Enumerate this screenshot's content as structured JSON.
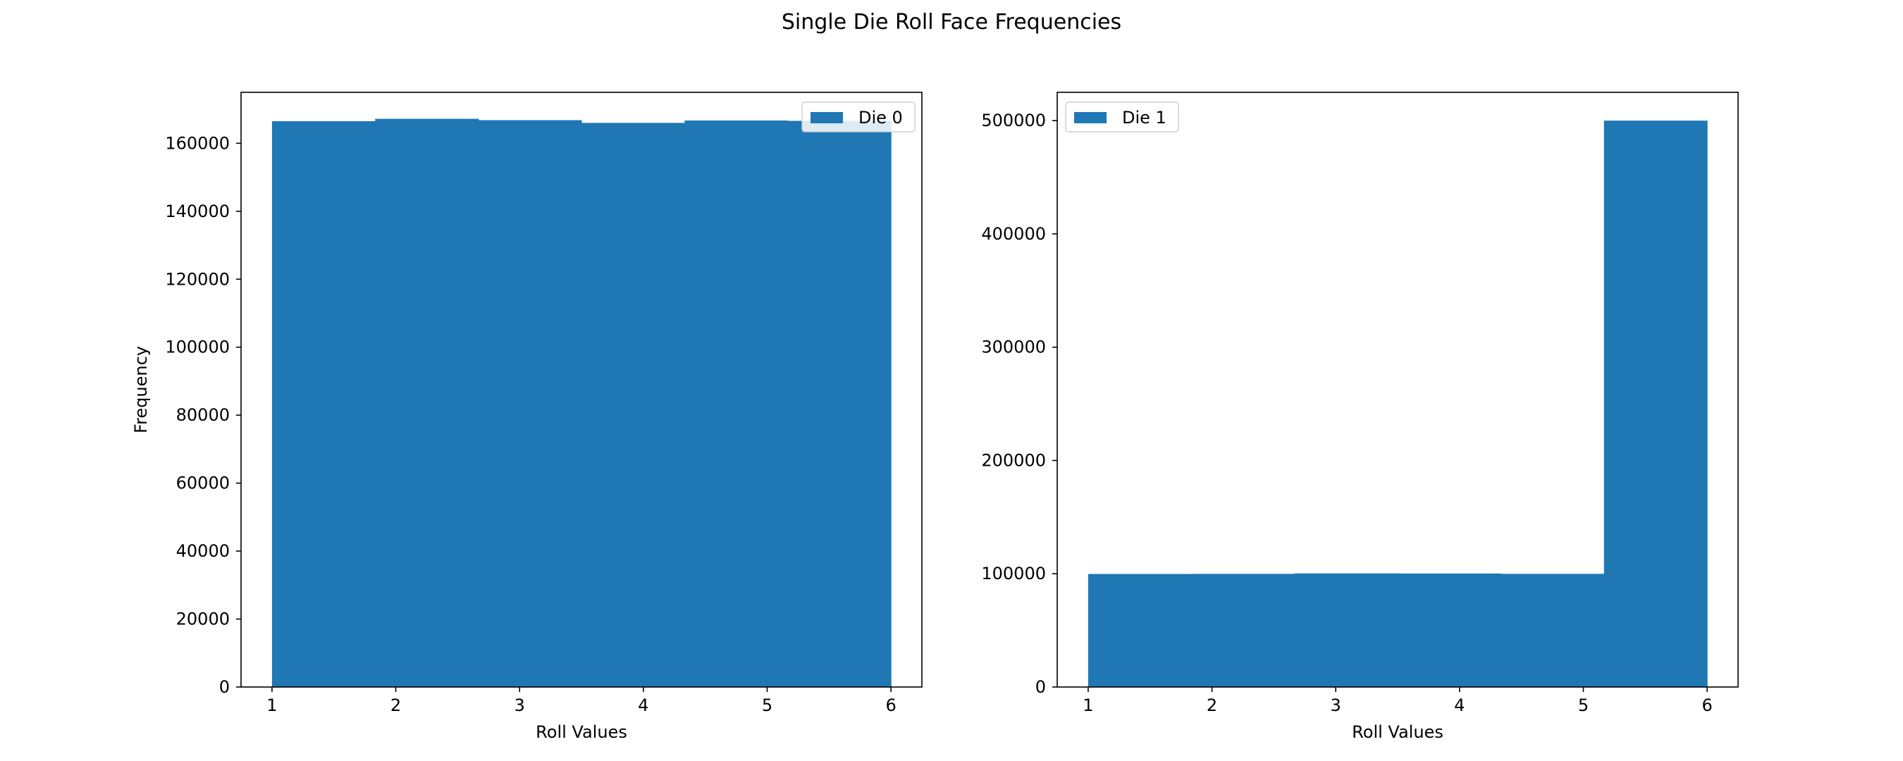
{
  "figure": {
    "suptitle": "Single Die Roll Face Frequencies",
    "bar_color": "#1f77b4"
  },
  "chart_data": [
    {
      "type": "bar",
      "histogram": true,
      "bin_edges": [
        1.0,
        1.8333,
        2.6667,
        3.5,
        4.3333,
        5.1667,
        6.0
      ],
      "values": [
        166500,
        167200,
        166800,
        166000,
        166700,
        166600
      ],
      "xlabel": "Roll Values",
      "ylabel": "Frequency",
      "xlim": [
        0.75,
        6.25
      ],
      "ylim": [
        0,
        175000
      ],
      "xticks": [
        1,
        2,
        3,
        4,
        5,
        6
      ],
      "yticks": [
        0,
        20000,
        40000,
        60000,
        80000,
        100000,
        120000,
        140000,
        160000
      ],
      "legend": {
        "placement": "upper right",
        "entries": [
          "Die 0"
        ]
      },
      "grid": false
    },
    {
      "type": "bar",
      "histogram": true,
      "bin_edges": [
        1.0,
        1.8333,
        2.6667,
        3.5,
        4.3333,
        5.1667,
        6.0
      ],
      "values": [
        99800,
        99900,
        100300,
        100200,
        99900,
        500000
      ],
      "xlabel": "Roll Values",
      "ylabel": "",
      "xlim": [
        0.75,
        6.25
      ],
      "ylim": [
        0,
        525000
      ],
      "xticks": [
        1,
        2,
        3,
        4,
        5,
        6
      ],
      "yticks": [
        0,
        100000,
        200000,
        300000,
        400000,
        500000
      ],
      "legend": {
        "placement": "upper left",
        "entries": [
          "Die 1"
        ]
      },
      "grid": false
    }
  ]
}
